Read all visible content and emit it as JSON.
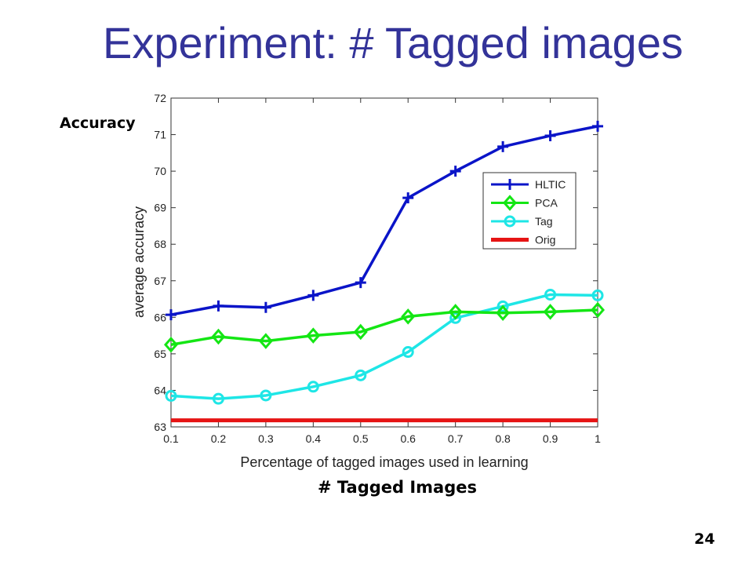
{
  "slide": {
    "title": "Experiment: # Tagged images",
    "accuracy_label": "Accuracy",
    "tagged_images_label": "# Tagged Images",
    "page_number": "24"
  },
  "chart_data": {
    "type": "line",
    "xlabel": "Percentage of tagged images used in learning",
    "ylabel": "average accuracy",
    "xlim": [
      0.1,
      1
    ],
    "ylim": [
      63,
      72
    ],
    "x": [
      0.1,
      0.2,
      0.3,
      0.4,
      0.5,
      0.6,
      0.7,
      0.8,
      0.9,
      1.0
    ],
    "x_tick_labels": [
      "0.1",
      "0.2",
      "0.3",
      "0.4",
      "0.5",
      "0.6",
      "0.7",
      "0.8",
      "0.9",
      "1"
    ],
    "y_ticks": [
      63,
      64,
      65,
      66,
      67,
      68,
      69,
      70,
      71,
      72
    ],
    "grid": false,
    "legend_position": "top-right",
    "series": [
      {
        "name": "HLTIC",
        "color": "#0a14c8",
        "marker": "plus",
        "values": [
          66.07,
          66.31,
          66.27,
          66.6,
          66.95,
          69.27,
          70.0,
          70.67,
          70.97,
          71.23
        ]
      },
      {
        "name": "PCA",
        "color": "#14e614",
        "marker": "diamond",
        "values": [
          65.25,
          65.47,
          65.35,
          65.5,
          65.6,
          66.02,
          66.15,
          66.12,
          66.15,
          66.2
        ]
      },
      {
        "name": "Tag",
        "color": "#1ee6e6",
        "marker": "circle",
        "values": [
          63.85,
          63.77,
          63.86,
          64.1,
          64.41,
          65.05,
          65.98,
          66.3,
          66.62,
          66.6
        ]
      },
      {
        "name": "Orig",
        "color": "#e61414",
        "marker": "none",
        "values": [
          63.18,
          63.18,
          63.18,
          63.18,
          63.18,
          63.18,
          63.18,
          63.18,
          63.18,
          63.18
        ]
      }
    ]
  }
}
